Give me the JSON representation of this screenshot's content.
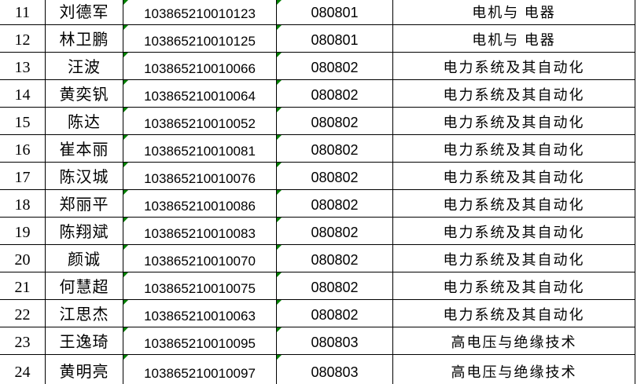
{
  "table": {
    "background": "#ffffff",
    "border_color": "#000000",
    "indicator_color": "#008000",
    "rows": [
      {
        "no": "11",
        "name": "刘德军",
        "id": "103865210010123",
        "code": "080801",
        "major": "电机与 电器"
      },
      {
        "no": "12",
        "name": "林卫鹏",
        "id": "103865210010125",
        "code": "080801",
        "major": "电机与 电器"
      },
      {
        "no": "13",
        "name": "汪波",
        "id": "103865210010066",
        "code": "080802",
        "major": "电力系统及其自动化"
      },
      {
        "no": "14",
        "name": "黄奕钒",
        "id": "103865210010064",
        "code": "080802",
        "major": "电力系统及其自动化"
      },
      {
        "no": "15",
        "name": "陈达",
        "id": "103865210010052",
        "code": "080802",
        "major": "电力系统及其自动化"
      },
      {
        "no": "16",
        "name": "崔本丽",
        "id": "103865210010081",
        "code": "080802",
        "major": "电力系统及其自动化"
      },
      {
        "no": "17",
        "name": "陈汉城",
        "id": "103865210010076",
        "code": "080802",
        "major": "电力系统及其自动化"
      },
      {
        "no": "18",
        "name": "郑丽平",
        "id": "103865210010086",
        "code": "080802",
        "major": "电力系统及其自动化"
      },
      {
        "no": "19",
        "name": "陈翔斌",
        "id": "103865210010083",
        "code": "080802",
        "major": "电力系统及其自动化"
      },
      {
        "no": "20",
        "name": "颜诚",
        "id": "103865210010070",
        "code": "080802",
        "major": "电力系统及其自动化"
      },
      {
        "no": "21",
        "name": "何慧超",
        "id": "103865210010075",
        "code": "080802",
        "major": "电力系统及其自动化"
      },
      {
        "no": "22",
        "name": "江思杰",
        "id": "103865210010063",
        "code": "080802",
        "major": "电力系统及其自动化"
      },
      {
        "no": "23",
        "name": "王逸琦",
        "id": "103865210010095",
        "code": "080803",
        "major": "高电压与绝缘技术"
      },
      {
        "no": "24",
        "name": "黄明亮",
        "id": "103865210010097",
        "code": "080803",
        "major": "高电压与绝缘技术"
      }
    ]
  }
}
